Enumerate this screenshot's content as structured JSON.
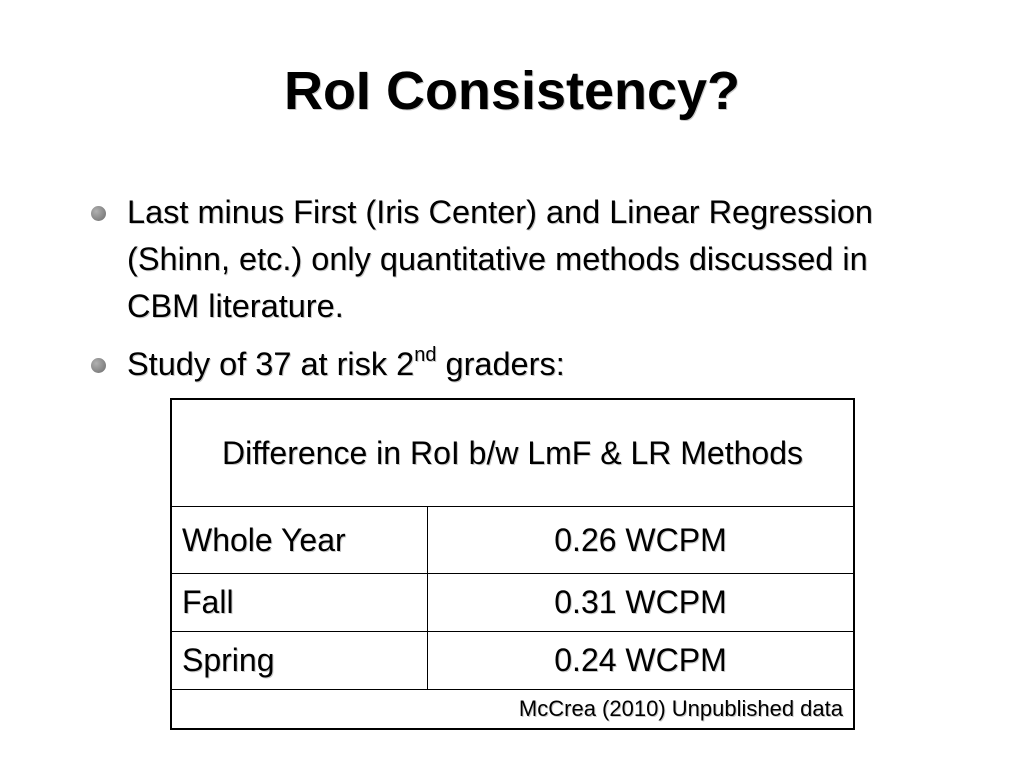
{
  "slide": {
    "title": "RoI Consistency?",
    "bullets": [
      "Last minus First (Iris Center) and Linear Regression (Shinn, etc.) only quantitative methods discussed in CBM literature.",
      {
        "prefix": "Study of 37 at risk 2",
        "superscript": "nd",
        "suffix": " graders:"
      }
    ]
  },
  "table": {
    "header": "Difference in RoI b/w LmF & LR Methods",
    "rows": [
      {
        "label": "Whole Year",
        "value": "0.26 WCPM"
      },
      {
        "label": "Fall",
        "value": "0.31 WCPM"
      },
      {
        "label": "Spring",
        "value": "0.24 WCPM"
      }
    ],
    "source": "McCrea (2010) Unpublished data"
  }
}
